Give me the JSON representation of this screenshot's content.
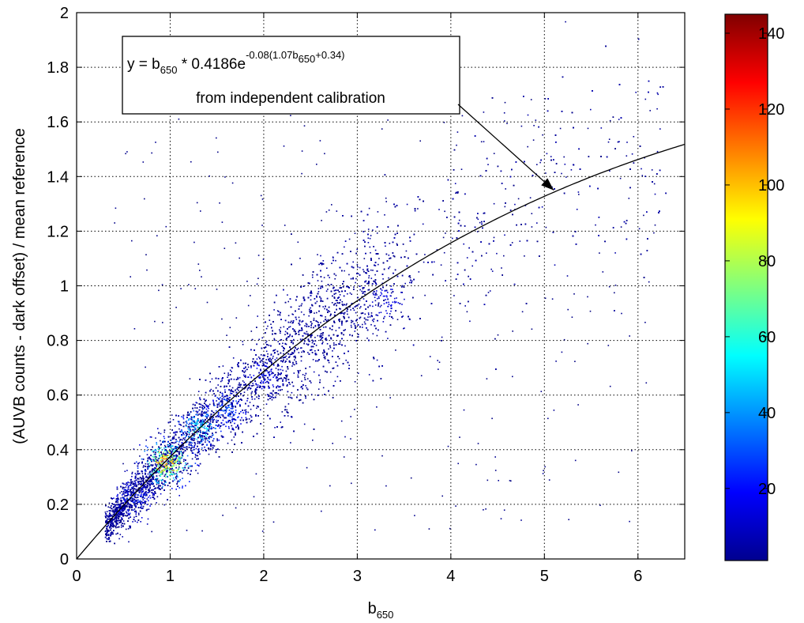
{
  "chart_data": {
    "type": "heatmap",
    "title": "",
    "xlabel": {
      "base": "b",
      "sub": "650"
    },
    "ylabel": "(AUVB counts - dark offset) / mean reference",
    "xlim": [
      0,
      6.5
    ],
    "ylim": [
      0,
      2
    ],
    "x_ticks": [
      "0",
      "1",
      "2",
      "3",
      "4",
      "5",
      "6"
    ],
    "y_ticks": [
      "0",
      "0.2",
      "0.4",
      "0.6",
      "0.8",
      "1",
      "1.2",
      "1.4",
      "1.6",
      "1.8",
      "2"
    ],
    "grid": true,
    "colormap": "jet",
    "colorbar": {
      "range": [
        1,
        145
      ],
      "ticks": [
        "20",
        "40",
        "60",
        "80",
        "100",
        "120",
        "140"
      ]
    },
    "fit_curve": {
      "A": 0.4186,
      "k": -0.08,
      "a": 1.07,
      "c": 0.34
    },
    "density_hotspots": [
      {
        "x": 0.95,
        "y": 0.35,
        "count": 120
      },
      {
        "x": 1.3,
        "y": 0.48,
        "count": 60
      },
      {
        "x": 1.6,
        "y": 0.55,
        "count": 35
      },
      {
        "x": 0.6,
        "y": 0.22,
        "count": 30
      },
      {
        "x": 3.3,
        "y": 0.95,
        "count": 15
      },
      {
        "x": 2.0,
        "y": 0.68,
        "count": 20
      }
    ],
    "annotation": {
      "line1": {
        "y_eq": "y = b",
        "sub1": "650",
        "mult": " * 0.4186e",
        "sup_a": "-0.08(1.07b",
        "sup_sub": "650",
        "sup_b": "+0.34)"
      },
      "line2": "from independent calibration",
      "arrow_target": {
        "x": 5.1,
        "y": 1.35
      }
    }
  }
}
